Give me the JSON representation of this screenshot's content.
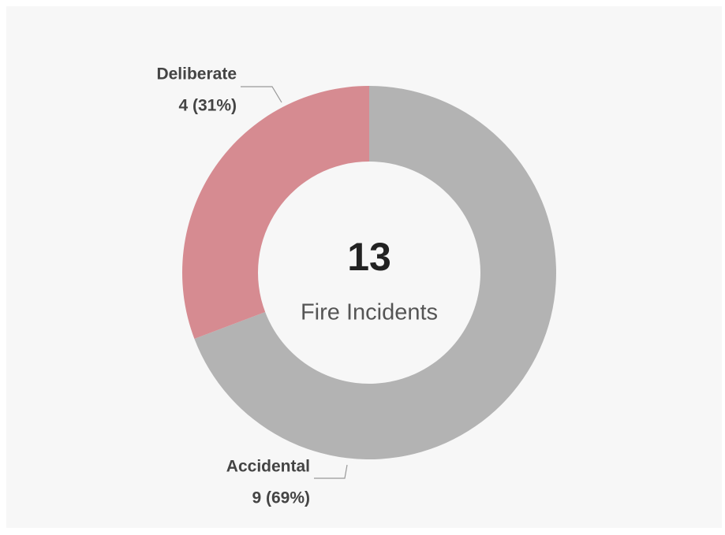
{
  "chart_data": {
    "type": "donut",
    "categories": [
      "Accidental",
      "Deliberate"
    ],
    "values": [
      9,
      4
    ],
    "value_labels": [
      "9 (69%)",
      "4 (31%)"
    ],
    "colors": [
      "#b3b3b3",
      "#d68b91"
    ],
    "center_value": 13,
    "center_label": "Fire Incidents"
  }
}
